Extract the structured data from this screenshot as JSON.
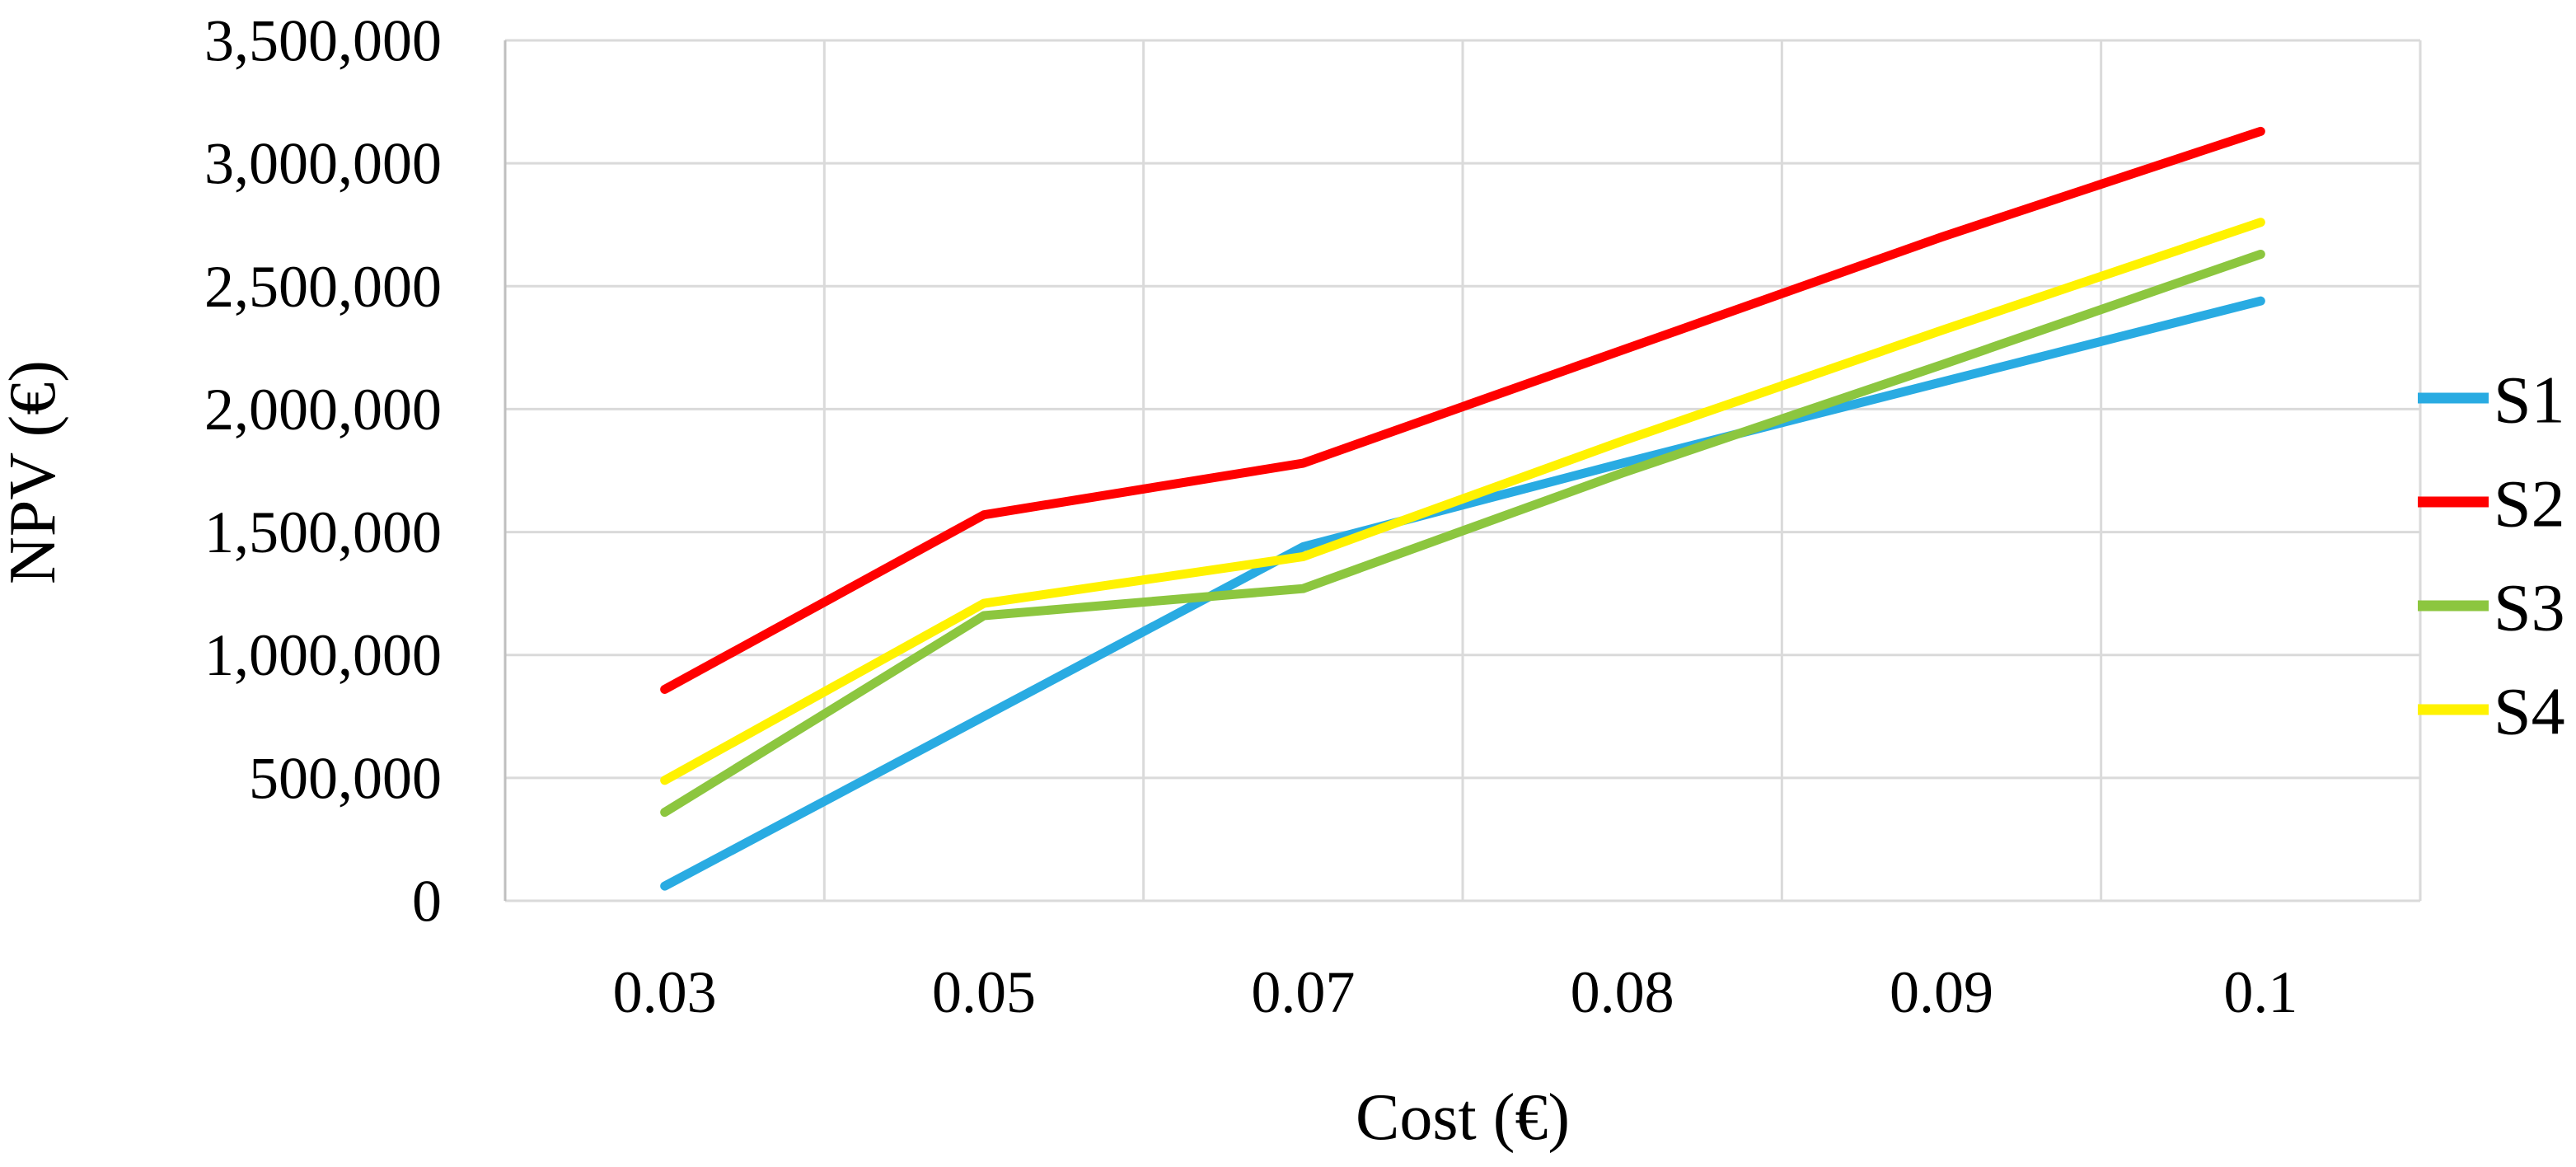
{
  "figure": {
    "kind": "line-chart-figure",
    "background": "#FFFFFF"
  },
  "chart_data": {
    "type": "line",
    "title": "",
    "xlabel": "Cost (€)",
    "ylabel": "NPV (€)",
    "x_categories": [
      "0.03",
      "0.05",
      "0.07",
      "0.08",
      "0.09",
      "0.1"
    ],
    "y_tick_labels": [
      "0",
      "500,000",
      "1,000,000",
      "1,500,000",
      "2,000,000",
      "2,500,000",
      "3,000,000",
      "3,500,000"
    ],
    "y_tick_values": [
      0,
      500000,
      1000000,
      1500000,
      2000000,
      2500000,
      3000000,
      3500000
    ],
    "ylim": [
      0,
      3500000
    ],
    "y_step": 500000,
    "grid": "horizontal and vertical gridlines, light gray",
    "legend_position": "right",
    "series": [
      {
        "name": "S1",
        "color": "#29ABE2",
        "values": [
          60000,
          750000,
          1440000,
          1780000,
          2110000,
          2440000
        ]
      },
      {
        "name": "S2",
        "color": "#FF0000",
        "values": [
          860000,
          1570000,
          1780000,
          2240000,
          2700000,
          3130000
        ]
      },
      {
        "name": "S3",
        "color": "#8CC63F",
        "values": [
          360000,
          1160000,
          1270000,
          1740000,
          2180000,
          2630000
        ]
      },
      {
        "name": "S4",
        "color": "#FFF200",
        "values": [
          490000,
          1210000,
          1400000,
          1870000,
          2320000,
          2760000
        ]
      }
    ],
    "colors": {
      "gridline": "#DADADA",
      "axis_line": "#BFBFBF",
      "text": "#000000",
      "background": "#FFFFFF"
    }
  }
}
